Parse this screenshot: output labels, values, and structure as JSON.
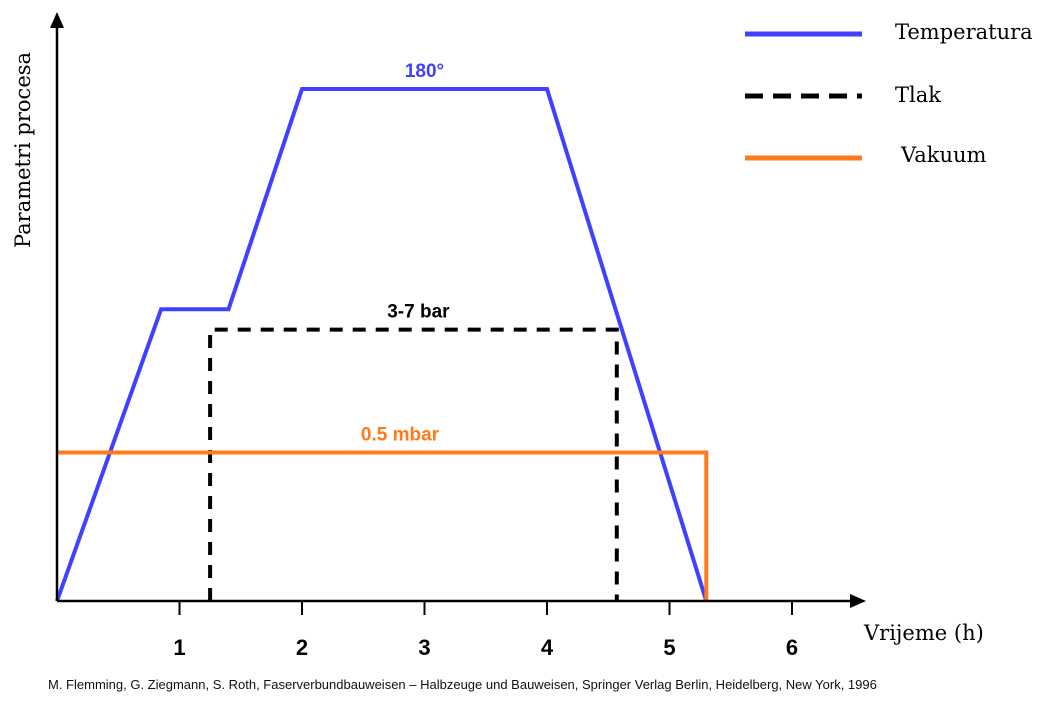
{
  "chart_data": {
    "type": "line",
    "xlabel": "Vrijeme (h)",
    "ylabel": "Parametri procesa",
    "x_ticks": [
      1,
      2,
      3,
      4,
      5,
      6
    ],
    "xlim": [
      0,
      6.3
    ],
    "ylim": [
      0,
      1
    ],
    "grid": false,
    "legend_position": "top-right",
    "series": [
      {
        "name": "Temperatura",
        "color": "#4040ff",
        "style": "solid",
        "points": [
          [
            0,
            0
          ],
          [
            0.85,
            0.57
          ],
          [
            1.4,
            0.57
          ],
          [
            2.0,
            1.0
          ],
          [
            4.0,
            1.0
          ],
          [
            5.3,
            0
          ]
        ]
      },
      {
        "name": "Tlak",
        "color": "#000000",
        "style": "dashed",
        "points": [
          [
            1.25,
            0
          ],
          [
            1.25,
            0.53
          ],
          [
            4.57,
            0.53
          ],
          [
            4.57,
            0
          ]
        ]
      },
      {
        "name": "Vakuum",
        "color": "#ff7a1a",
        "style": "solid",
        "points": [
          [
            0,
            0.29
          ],
          [
            5.3,
            0.29
          ],
          [
            5.3,
            0
          ]
        ]
      }
    ],
    "annotations": [
      {
        "text": "180°",
        "x": 3.0,
        "y": 1.0,
        "color": "#4040ff"
      },
      {
        "text": "3-7 bar",
        "x": 2.95,
        "y": 0.53,
        "color": "#000000"
      },
      {
        "text": "0.5 mbar",
        "x": 2.8,
        "y": 0.29,
        "color": "#ff7a1a"
      }
    ]
  },
  "citation": "M. Flemming, G. Ziegmann, S. Roth, Faserverbundbauweisen – Halbzeuge und Bauweisen, Springer Verlag Berlin, Heidelberg, New York, 1996"
}
